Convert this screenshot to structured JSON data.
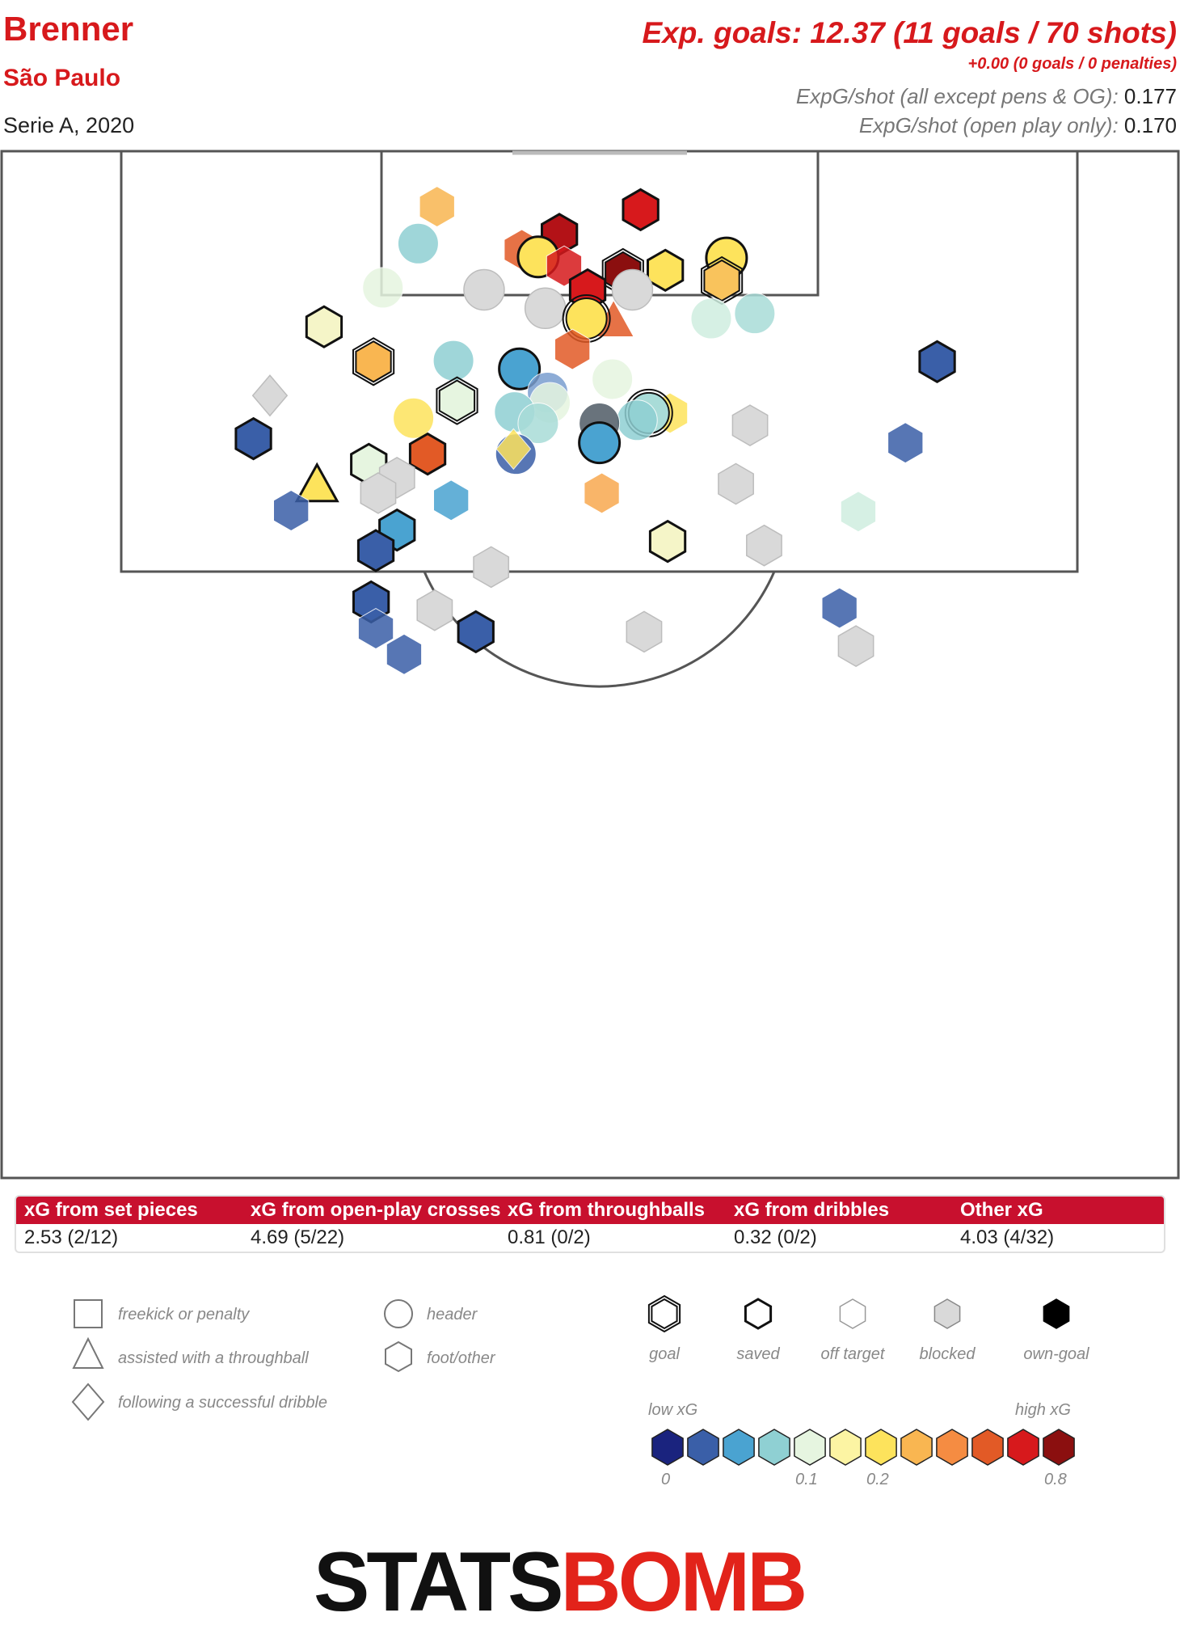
{
  "header": {
    "player": "Brenner",
    "team": "São Paulo",
    "competition": "Serie A, 2020",
    "exp_goals": "Exp. goals: 12.37 (11 goals / 70 shots)",
    "penalties": "+0.00 (0 goals / 0 penalties)",
    "xg_per_shot_all_label": "ExpG/shot (all except pens & OG):",
    "xg_per_shot_all_value": "0.177",
    "xg_per_shot_open_label": "ExpG/shot (open play only):",
    "xg_per_shot_open_value": "0.170"
  },
  "summary": [
    {
      "label": "xG from set pieces",
      "value": "2.53 (2/12)"
    },
    {
      "label": "xG from open-play crosses",
      "value": "4.69 (5/22)"
    },
    {
      "label": "xG from throughballs",
      "value": "0.81 (0/2)"
    },
    {
      "label": "xG from dribbles",
      "value": "0.32 (0/2)"
    },
    {
      "label": "Other xG",
      "value": "4.03 (4/32)"
    }
  ],
  "legend": {
    "shape_items": [
      {
        "label": "freekick or penalty",
        "shape": "square"
      },
      {
        "label": "assisted with a throughball",
        "shape": "triangle"
      },
      {
        "label": "following a successful dribble",
        "shape": "diamond"
      },
      {
        "label": "header",
        "shape": "circle"
      },
      {
        "label": "foot/other",
        "shape": "hexagon"
      }
    ],
    "outcome_items": [
      {
        "label": "goal",
        "style": "goal"
      },
      {
        "label": "saved",
        "style": "saved"
      },
      {
        "label": "off target",
        "style": "off"
      },
      {
        "label": "blocked",
        "style": "blocked"
      },
      {
        "label": "own-goal",
        "style": "own"
      }
    ],
    "scale_low": "low xG",
    "scale_high": "high xG",
    "scale_ticks": [
      "0",
      "0.1",
      "0.2",
      "0.8"
    ],
    "scale_colors": [
      "#1a237e",
      "#3a5fa8",
      "#4aa3d1",
      "#8fd0d3",
      "#e6f5e0",
      "#fcf4a3",
      "#fde35c",
      "#f9b651",
      "#f58c42",
      "#e25a26",
      "#d7191c",
      "#8b0f0f"
    ]
  },
  "logo": {
    "stats": "STATS",
    "bomb": "BOMB"
  },
  "colors": {
    "accent": "#d7191c",
    "banner": "#c8102e",
    "blocked": "#d9d9d9",
    "pitch_line": "#555555"
  },
  "chart_data": {
    "type": "scatter",
    "title": "Brenner",
    "subtitle": "São Paulo",
    "total_xg": 12.37,
    "goals": 11,
    "shots": 70,
    "xg_per_shot_all": 0.177,
    "xg_per_shot_open_play": 0.17,
    "breakdown": [
      {
        "name": "set pieces",
        "xg": 2.53,
        "goals": 2,
        "shots": 12
      },
      {
        "name": "open-play crosses",
        "xg": 4.69,
        "goals": 5,
        "shots": 22
      },
      {
        "name": "throughballs",
        "xg": 0.81,
        "goals": 0,
        "shots": 2
      },
      {
        "name": "dribbles",
        "xg": 0.32,
        "goals": 0,
        "shots": 2
      },
      {
        "name": "other",
        "xg": 4.03,
        "goals": 4,
        "shots": 32
      }
    ],
    "shots_plotted": [
      {
        "x": 0.37,
        "y": 0.054,
        "shape": "hexagon",
        "outcome": "off",
        "color": "#f9b651"
      },
      {
        "x": 0.354,
        "y": 0.09,
        "shape": "circle",
        "outcome": "off",
        "color": "#8fd0d3"
      },
      {
        "x": 0.442,
        "y": 0.096,
        "shape": "hexagon",
        "outcome": "off",
        "color": "#e25a26"
      },
      {
        "x": 0.543,
        "y": 0.057,
        "shape": "hexagon",
        "outcome": "saved",
        "color": "#d7191c"
      },
      {
        "x": 0.474,
        "y": 0.081,
        "shape": "hexagon",
        "outcome": "saved",
        "color": "#b31217"
      },
      {
        "x": 0.456,
        "y": 0.103,
        "shape": "circle",
        "outcome": "saved",
        "color": "#fde35c"
      },
      {
        "x": 0.478,
        "y": 0.112,
        "shape": "hexagon",
        "outcome": "off",
        "color": "#d7191c"
      },
      {
        "x": 0.528,
        "y": 0.118,
        "shape": "hexagon",
        "outcome": "goal",
        "color": "#8b0f0f"
      },
      {
        "x": 0.564,
        "y": 0.116,
        "shape": "hexagon",
        "outcome": "saved",
        "color": "#fde35c"
      },
      {
        "x": 0.616,
        "y": 0.104,
        "shape": "circle",
        "outcome": "saved",
        "color": "#fde35c"
      },
      {
        "x": 0.612,
        "y": 0.126,
        "shape": "hexagon",
        "outcome": "goal",
        "color": "#f9c35c"
      },
      {
        "x": 0.324,
        "y": 0.133,
        "shape": "circle",
        "outcome": "off",
        "color": "#e6f5e0"
      },
      {
        "x": 0.41,
        "y": 0.135,
        "shape": "circle",
        "outcome": "blocked",
        "color": "#d9d9d9"
      },
      {
        "x": 0.536,
        "y": 0.135,
        "shape": "circle",
        "outcome": "blocked",
        "color": "#d9d9d9"
      },
      {
        "x": 0.462,
        "y": 0.153,
        "shape": "circle",
        "outcome": "blocked",
        "color": "#d9d9d9"
      },
      {
        "x": 0.498,
        "y": 0.135,
        "shape": "hexagon",
        "outcome": "saved",
        "color": "#d7191c"
      },
      {
        "x": 0.52,
        "y": 0.165,
        "shape": "triangle",
        "outcome": "off",
        "color": "#e25a26"
      },
      {
        "x": 0.497,
        "y": 0.163,
        "shape": "circle",
        "outcome": "goal",
        "color": "#fde35c"
      },
      {
        "x": 0.603,
        "y": 0.163,
        "shape": "circle",
        "outcome": "off",
        "color": "#cfeee0"
      },
      {
        "x": 0.64,
        "y": 0.158,
        "shape": "circle",
        "outcome": "off",
        "color": "#a9dcd8"
      },
      {
        "x": 0.274,
        "y": 0.171,
        "shape": "hexagon",
        "outcome": "saved",
        "color": "#f5f5c8"
      },
      {
        "x": 0.316,
        "y": 0.205,
        "shape": "hexagon",
        "outcome": "goal",
        "color": "#f9b651"
      },
      {
        "x": 0.384,
        "y": 0.204,
        "shape": "circle",
        "outcome": "off",
        "color": "#8fd0d3"
      },
      {
        "x": 0.485,
        "y": 0.193,
        "shape": "hexagon",
        "outcome": "off",
        "color": "#e25a26"
      },
      {
        "x": 0.44,
        "y": 0.212,
        "shape": "circle",
        "outcome": "saved",
        "color": "#4aa3d1"
      },
      {
        "x": 0.519,
        "y": 0.222,
        "shape": "circle",
        "outcome": "off",
        "color": "#e6f5e0"
      },
      {
        "x": 0.795,
        "y": 0.205,
        "shape": "hexagon",
        "outcome": "saved",
        "color": "#3a5fa8"
      },
      {
        "x": 0.228,
        "y": 0.238,
        "shape": "diamond",
        "outcome": "blocked",
        "color": "#d9d9d9"
      },
      {
        "x": 0.387,
        "y": 0.243,
        "shape": "hexagon",
        "outcome": "goal",
        "color": "#e6f5e0"
      },
      {
        "x": 0.464,
        "y": 0.235,
        "shape": "circle",
        "outcome": "off",
        "color": "#7a9ed0"
      },
      {
        "x": 0.466,
        "y": 0.245,
        "shape": "circle",
        "outcome": "off",
        "color": "#e6f5e0"
      },
      {
        "x": 0.436,
        "y": 0.254,
        "shape": "circle",
        "outcome": "off",
        "color": "#8fd0d3"
      },
      {
        "x": 0.456,
        "y": 0.265,
        "shape": "circle",
        "outcome": "off",
        "color": "#a9dcd8"
      },
      {
        "x": 0.35,
        "y": 0.26,
        "shape": "circle",
        "outcome": "off",
        "color": "#fde35c"
      },
      {
        "x": 0.568,
        "y": 0.255,
        "shape": "hexagon",
        "outcome": "off",
        "color": "#fde35c"
      },
      {
        "x": 0.55,
        "y": 0.255,
        "shape": "circle",
        "outcome": "goal",
        "color": "#a9dcd8"
      },
      {
        "x": 0.54,
        "y": 0.262,
        "shape": "circle",
        "outcome": "off",
        "color": "#8fd0d3"
      },
      {
        "x": 0.508,
        "y": 0.265,
        "shape": "circle",
        "outcome": "off",
        "color": "#4f5b66"
      },
      {
        "x": 0.636,
        "y": 0.267,
        "shape": "hexagon",
        "outcome": "blocked",
        "color": "#d9d9d9"
      },
      {
        "x": 0.214,
        "y": 0.28,
        "shape": "hexagon",
        "outcome": "saved",
        "color": "#3a5fa8"
      },
      {
        "x": 0.768,
        "y": 0.284,
        "shape": "hexagon",
        "outcome": "off",
        "color": "#3a5fa8"
      },
      {
        "x": 0.508,
        "y": 0.284,
        "shape": "circle",
        "outcome": "saved",
        "color": "#4aa3d1"
      },
      {
        "x": 0.437,
        "y": 0.295,
        "shape": "circle",
        "outcome": "off",
        "color": "#3a5fa8"
      },
      {
        "x": 0.435,
        "y": 0.29,
        "shape": "diamond",
        "outcome": "off",
        "color": "#fde35c"
      },
      {
        "x": 0.362,
        "y": 0.295,
        "shape": "hexagon",
        "outcome": "saved",
        "color": "#e25a26"
      },
      {
        "x": 0.312,
        "y": 0.305,
        "shape": "hexagon",
        "outcome": "saved",
        "color": "#e6f5e0"
      },
      {
        "x": 0.268,
        "y": 0.325,
        "shape": "triangle",
        "outcome": "saved",
        "color": "#fde35c"
      },
      {
        "x": 0.336,
        "y": 0.318,
        "shape": "hexagon",
        "outcome": "blocked",
        "color": "#d9d9d9"
      },
      {
        "x": 0.32,
        "y": 0.333,
        "shape": "hexagon",
        "outcome": "blocked",
        "color": "#d9d9d9"
      },
      {
        "x": 0.382,
        "y": 0.34,
        "shape": "hexagon",
        "outcome": "off",
        "color": "#4aa3d1"
      },
      {
        "x": 0.51,
        "y": 0.333,
        "shape": "hexagon",
        "outcome": "off",
        "color": "#f9a94f"
      },
      {
        "x": 0.624,
        "y": 0.324,
        "shape": "hexagon",
        "outcome": "blocked",
        "color": "#d9d9d9"
      },
      {
        "x": 0.246,
        "y": 0.35,
        "shape": "hexagon",
        "outcome": "off",
        "color": "#3a5fa8"
      },
      {
        "x": 0.728,
        "y": 0.351,
        "shape": "hexagon",
        "outcome": "off",
        "color": "#cfeee0"
      },
      {
        "x": 0.336,
        "y": 0.369,
        "shape": "hexagon",
        "outcome": "saved",
        "color": "#4aa3d1"
      },
      {
        "x": 0.318,
        "y": 0.389,
        "shape": "hexagon",
        "outcome": "saved",
        "color": "#3a5fa8"
      },
      {
        "x": 0.566,
        "y": 0.38,
        "shape": "hexagon",
        "outcome": "saved",
        "color": "#f5f5c8"
      },
      {
        "x": 0.648,
        "y": 0.384,
        "shape": "hexagon",
        "outcome": "blocked",
        "color": "#d9d9d9"
      },
      {
        "x": 0.416,
        "y": 0.405,
        "shape": "hexagon",
        "outcome": "blocked",
        "color": "#d9d9d9"
      },
      {
        "x": 0.314,
        "y": 0.439,
        "shape": "hexagon",
        "outcome": "saved",
        "color": "#3a5fa8"
      },
      {
        "x": 0.368,
        "y": 0.447,
        "shape": "hexagon",
        "outcome": "blocked",
        "color": "#d9d9d9"
      },
      {
        "x": 0.318,
        "y": 0.465,
        "shape": "hexagon",
        "outcome": "off",
        "color": "#3a5fa8"
      },
      {
        "x": 0.403,
        "y": 0.468,
        "shape": "hexagon",
        "outcome": "saved",
        "color": "#3a5fa8"
      },
      {
        "x": 0.546,
        "y": 0.468,
        "shape": "hexagon",
        "outcome": "blocked",
        "color": "#d9d9d9"
      },
      {
        "x": 0.712,
        "y": 0.445,
        "shape": "hexagon",
        "outcome": "off",
        "color": "#3a5fa8"
      },
      {
        "x": 0.726,
        "y": 0.482,
        "shape": "hexagon",
        "outcome": "blocked",
        "color": "#d9d9d9"
      },
      {
        "x": 0.342,
        "y": 0.49,
        "shape": "hexagon",
        "outcome": "off",
        "color": "#3a5fa8"
      }
    ]
  }
}
